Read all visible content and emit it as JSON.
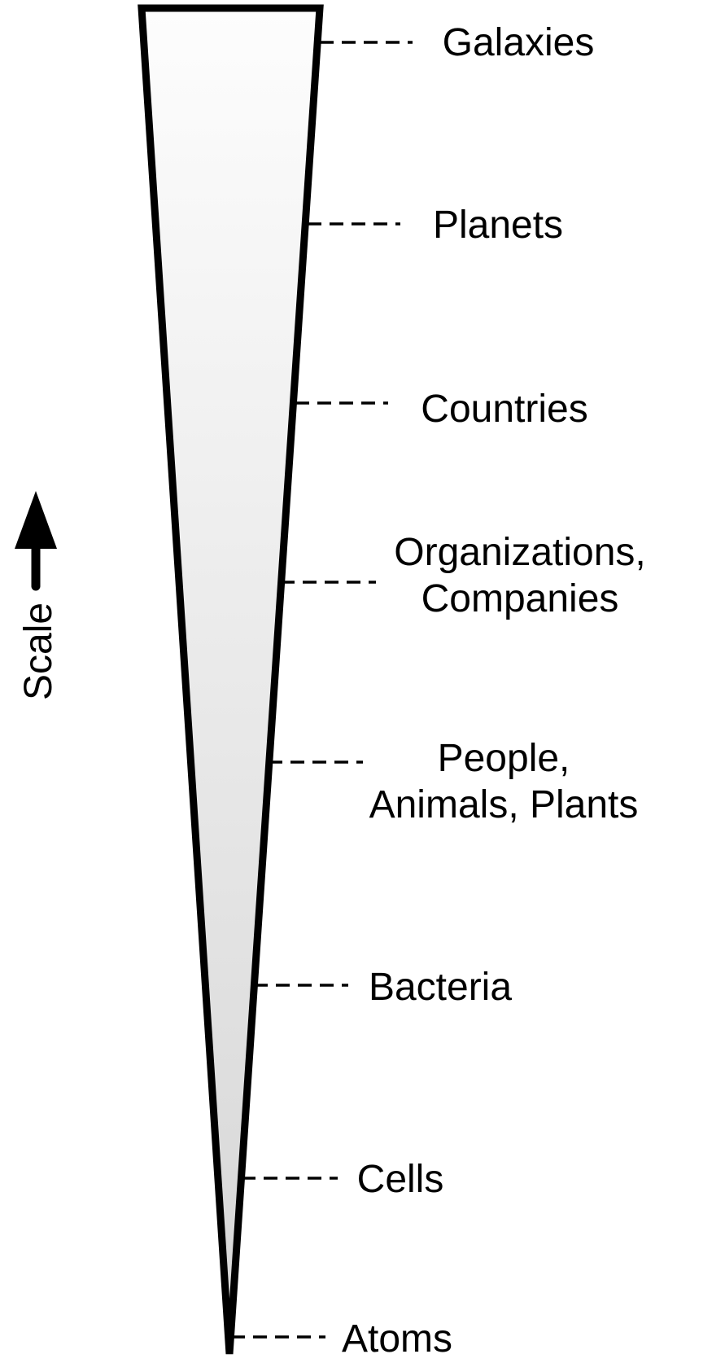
{
  "axis": {
    "label": "Scale"
  },
  "levels": [
    {
      "name": "level-galaxies",
      "lines": [
        "Galaxies"
      ]
    },
    {
      "name": "level-planets",
      "lines": [
        "Planets"
      ]
    },
    {
      "name": "level-countries",
      "lines": [
        "Countries"
      ]
    },
    {
      "name": "level-organizations",
      "lines": [
        "Organizations,",
        "Companies"
      ]
    },
    {
      "name": "level-people",
      "lines": [
        "People,",
        "Animals, Plants"
      ]
    },
    {
      "name": "level-bacteria",
      "lines": [
        "Bacteria"
      ]
    },
    {
      "name": "level-cells",
      "lines": [
        "Cells"
      ]
    },
    {
      "name": "level-atoms",
      "lines": [
        "Atoms"
      ]
    }
  ],
  "colors": {
    "stroke": "#000000",
    "fill_top": "#fdfdfd",
    "fill_bottom": "#d6d6d6"
  }
}
